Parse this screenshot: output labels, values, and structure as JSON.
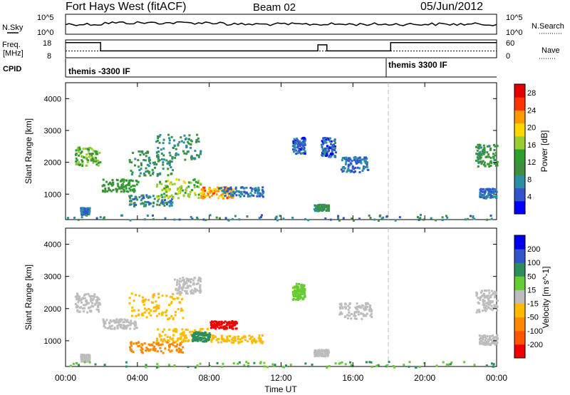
{
  "header": {
    "site": "Fort Hays West (fitACF)",
    "beam": "Beam 02",
    "date": "05/Jun/2012"
  },
  "labels": {
    "nsky": "N.Sky",
    "nsearch": "N.Search",
    "freq_line1": "Freq.",
    "freq_line2": "[MHz]",
    "nave": "Nave",
    "cpid": "CPID"
  },
  "noise_panel": {
    "left_ticks": [
      "10^5",
      "10^0"
    ],
    "right_ticks": [
      "10^5",
      "10^0"
    ]
  },
  "freq_panel": {
    "left_ticks": [
      "18",
      "8"
    ],
    "right_ticks": [
      "60",
      "0"
    ],
    "freq_steps": [
      [
        0,
        1.0
      ],
      [
        1.95,
        1.0
      ],
      [
        1.95,
        0.45
      ],
      [
        14.05,
        0.45
      ],
      [
        14.05,
        0.85
      ],
      [
        14.55,
        0.85
      ],
      [
        14.55,
        0.45
      ],
      [
        18.1,
        0.45
      ],
      [
        18.1,
        1.0
      ],
      [
        24,
        1.0
      ]
    ],
    "nave_level": 0.45
  },
  "cpid_panel": {
    "segments": [
      {
        "label": "themis -3300 IF",
        "start": 0
      },
      {
        "label": "themis 3300 IF",
        "start": 18.1
      }
    ]
  },
  "colors": {
    "power": [
      "#0000ff",
      "#3355cc",
      "#2a8fa0",
      "#3f8f3f",
      "#2ca02c",
      "#9acd32",
      "#ffd700",
      "#ff9900",
      "#ff3300",
      "#e00000"
    ],
    "velocity_neg": [
      "#0000ee",
      "#3355cc",
      "#2a8f5a",
      "#66cc33",
      "#bdbdbd"
    ],
    "velocity_pos": [
      "#ffbb00",
      "#ff8800",
      "#ff5500",
      "#ee0000"
    ]
  },
  "chart_data": [
    {
      "type": "heatmap",
      "name": "power",
      "ylabel": "Slant Range [km]",
      "y_ticks": [
        1000,
        2000,
        3000,
        4000
      ],
      "ylim": [
        200,
        4500
      ],
      "xlim": [
        0,
        24
      ],
      "colorbar": {
        "label": "Power [dB]",
        "ticks": [
          "4",
          "8",
          "12",
          "16",
          "20",
          "24",
          "28"
        ],
        "range": [
          0,
          30
        ]
      },
      "regions": [
        {
          "t0": 0.5,
          "t1": 1.9,
          "r0": 1900,
          "r1": 2500,
          "power": 14
        },
        {
          "t0": 0.8,
          "t1": 1.3,
          "r0": 380,
          "r1": 600,
          "power": 6
        },
        {
          "t0": 2.0,
          "t1": 4.0,
          "r0": 1100,
          "r1": 1500,
          "power": 12
        },
        {
          "t0": 3.5,
          "t1": 6.0,
          "r0": 1600,
          "r1": 2400,
          "power": 10
        },
        {
          "t0": 5.0,
          "t1": 7.5,
          "r0": 2100,
          "r1": 2900,
          "power": 9
        },
        {
          "t0": 3.5,
          "t1": 6.0,
          "r0": 650,
          "r1": 1000,
          "power": 8
        },
        {
          "t0": 5.0,
          "t1": 7.5,
          "r0": 900,
          "r1": 1500,
          "power": 16
        },
        {
          "t0": 7.5,
          "t1": 9.3,
          "r0": 900,
          "r1": 1250,
          "power": 22
        },
        {
          "t0": 8.5,
          "t1": 11.0,
          "r0": 950,
          "r1": 1250,
          "power": 6
        },
        {
          "t0": 12.6,
          "t1": 13.3,
          "r0": 2300,
          "r1": 2800,
          "power": 5
        },
        {
          "t0": 14.2,
          "t1": 15.0,
          "r0": 2200,
          "r1": 2800,
          "power": 5
        },
        {
          "t0": 15.3,
          "t1": 16.8,
          "r0": 1700,
          "r1": 2200,
          "power": 6
        },
        {
          "t0": 13.8,
          "t1": 14.6,
          "r0": 500,
          "r1": 700,
          "power": 10
        },
        {
          "t0": 22.8,
          "t1": 24.0,
          "r0": 1900,
          "r1": 2600,
          "power": 11
        },
        {
          "t0": 23.0,
          "t1": 24.0,
          "r0": 900,
          "r1": 1200,
          "power": 6
        },
        {
          "t0": 0.0,
          "t1": 24.0,
          "r0": 200,
          "r1": 380,
          "power": 8
        }
      ]
    },
    {
      "type": "heatmap",
      "name": "velocity",
      "xlabel": "Time UT",
      "ylabel": "Slant Range [km]",
      "y_ticks": [
        1000,
        2000,
        3000,
        4000
      ],
      "ylim": [
        200,
        4500
      ],
      "xlim": [
        0,
        24
      ],
      "x_ticks": [
        "00:00",
        "04:00",
        "08:00",
        "12:00",
        "16:00",
        "20:00",
        "00:00"
      ],
      "colorbar": {
        "label": "Velocity [m s^-1]",
        "ticks": [
          "200",
          "100",
          "50",
          "15",
          "-15",
          "-50",
          "-100",
          "-200"
        ]
      },
      "regions": [
        {
          "t0": 0.5,
          "t1": 1.9,
          "r0": 1900,
          "r1": 2500,
          "velocity": 0
        },
        {
          "t0": 0.8,
          "t1": 1.3,
          "r0": 380,
          "r1": 600,
          "velocity": 0
        },
        {
          "t0": 2.0,
          "t1": 4.0,
          "r0": 1400,
          "r1": 1700,
          "velocity": -5
        },
        {
          "t0": 3.5,
          "t1": 6.5,
          "r0": 1700,
          "r1": 2500,
          "velocity": -30
        },
        {
          "t0": 6.0,
          "t1": 7.5,
          "r0": 2500,
          "r1": 3000,
          "velocity": 0
        },
        {
          "t0": 3.5,
          "t1": 6.5,
          "r0": 650,
          "r1": 1000,
          "velocity": -60
        },
        {
          "t0": 5.0,
          "t1": 8.0,
          "r0": 1000,
          "r1": 1400,
          "velocity": -40
        },
        {
          "t0": 7.0,
          "t1": 8.0,
          "r0": 1000,
          "r1": 1300,
          "velocity": 40
        },
        {
          "t0": 8.0,
          "t1": 9.5,
          "r0": 1400,
          "r1": 1650,
          "velocity": -180
        },
        {
          "t0": 8.0,
          "t1": 11.0,
          "r0": 950,
          "r1": 1200,
          "velocity": -30
        },
        {
          "t0": 12.6,
          "t1": 13.3,
          "r0": 2300,
          "r1": 2800,
          "velocity": 20
        },
        {
          "t0": 15.2,
          "t1": 17.0,
          "r0": 1700,
          "r1": 2200,
          "velocity": 0
        },
        {
          "t0": 13.8,
          "t1": 14.6,
          "r0": 550,
          "r1": 750,
          "velocity": 0
        },
        {
          "t0": 22.8,
          "t1": 24.0,
          "r0": 1900,
          "r1": 2600,
          "velocity": 0
        },
        {
          "t0": 23.0,
          "t1": 24.0,
          "r0": 900,
          "r1": 1200,
          "velocity": 0
        },
        {
          "t0": 0.0,
          "t1": 24.0,
          "r0": 200,
          "r1": 380,
          "velocity": 30
        }
      ]
    }
  ]
}
